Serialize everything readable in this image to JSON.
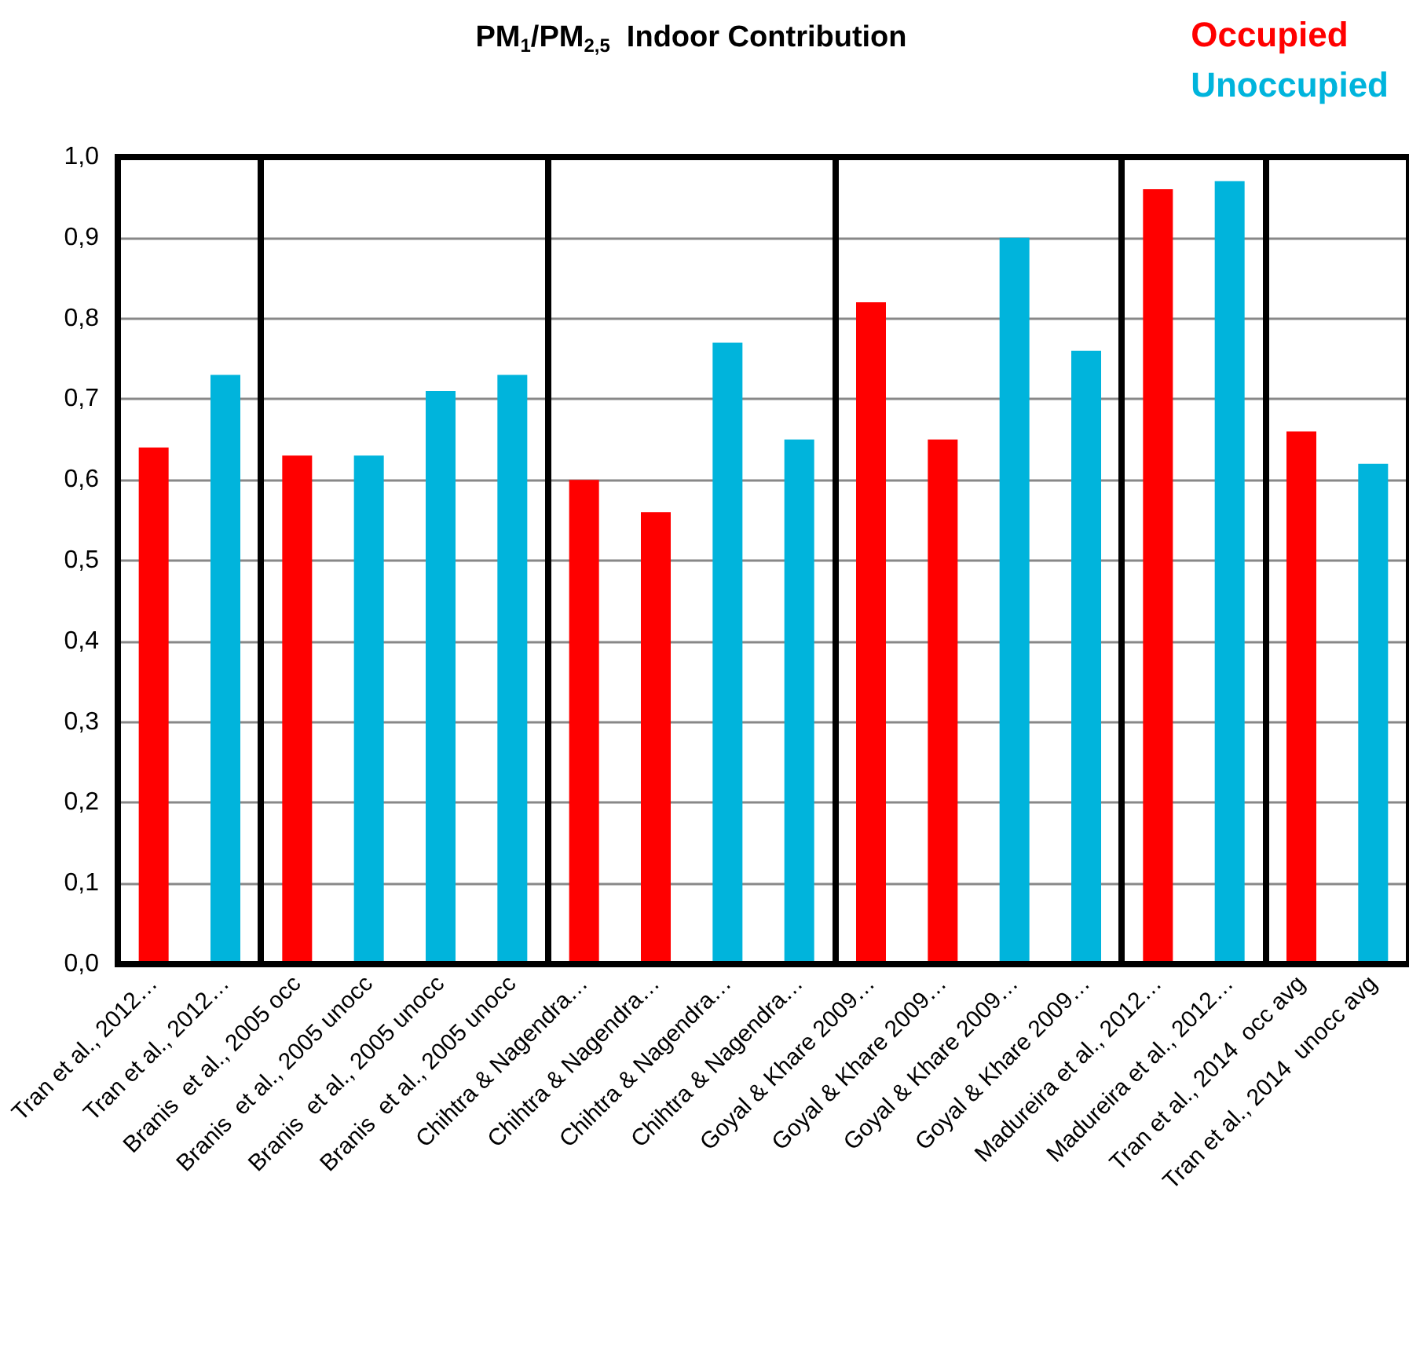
{
  "chart_data": {
    "type": "bar",
    "title": "PM$_{1}$/PM$_{2,5}$  Indoor Contribution",
    "categories": [
      "Tran et al., 2012…",
      "Tran et al., 2012…",
      "Branis  et al., 2005 occ",
      "Branis  et al., 2005 unocc",
      "Branis  et al., 2005 unocc",
      "Branis  et al., 2005 unocc",
      "Chihtra & Nagendra…",
      "Chihtra & Nagendra…",
      "Chihtra & Nagendra…",
      "Chihtra & Nagendra…",
      "Goyal & Khare 2009…",
      "Goyal & Khare 2009…",
      "Goyal & Khare 2009…",
      "Goyal & Khare 2009…",
      "Madureira et al., 2012…",
      "Madureira et al., 2012…",
      "Tran et al., 2014  occ avg",
      "Tran et al., 2014  unocc avg"
    ],
    "series": [
      {
        "name": "Occupied",
        "color": "#ff0000",
        "values": [
          0.64,
          null,
          0.63,
          null,
          null,
          null,
          0.6,
          0.56,
          null,
          null,
          0.82,
          0.65,
          null,
          null,
          0.96,
          null,
          0.66,
          null
        ]
      },
      {
        "name": "Unoccupied",
        "color": "#00b4dc",
        "values": [
          null,
          0.73,
          null,
          0.63,
          0.71,
          0.73,
          null,
          null,
          0.77,
          0.65,
          null,
          null,
          0.9,
          0.76,
          null,
          0.97,
          null,
          0.62
        ]
      }
    ],
    "ylim": [
      0,
      1
    ],
    "yticks": [
      {
        "value": 0,
        "label": "0,0"
      },
      {
        "value": 0.1,
        "label": "0,1"
      },
      {
        "value": 0.2,
        "label": "0,2"
      },
      {
        "value": 0.3,
        "label": "0,3"
      },
      {
        "value": 0.4,
        "label": "0,4"
      },
      {
        "value": 0.5,
        "label": "0,5"
      },
      {
        "value": 0.6,
        "label": "0,6"
      },
      {
        "value": 0.7,
        "label": "0,7"
      },
      {
        "value": 0.8,
        "label": "0,8"
      },
      {
        "value": 0.9,
        "label": "0,9"
      },
      {
        "value": 1,
        "label": "1,0"
      }
    ],
    "grid": "y",
    "legend": "top right"
  }
}
